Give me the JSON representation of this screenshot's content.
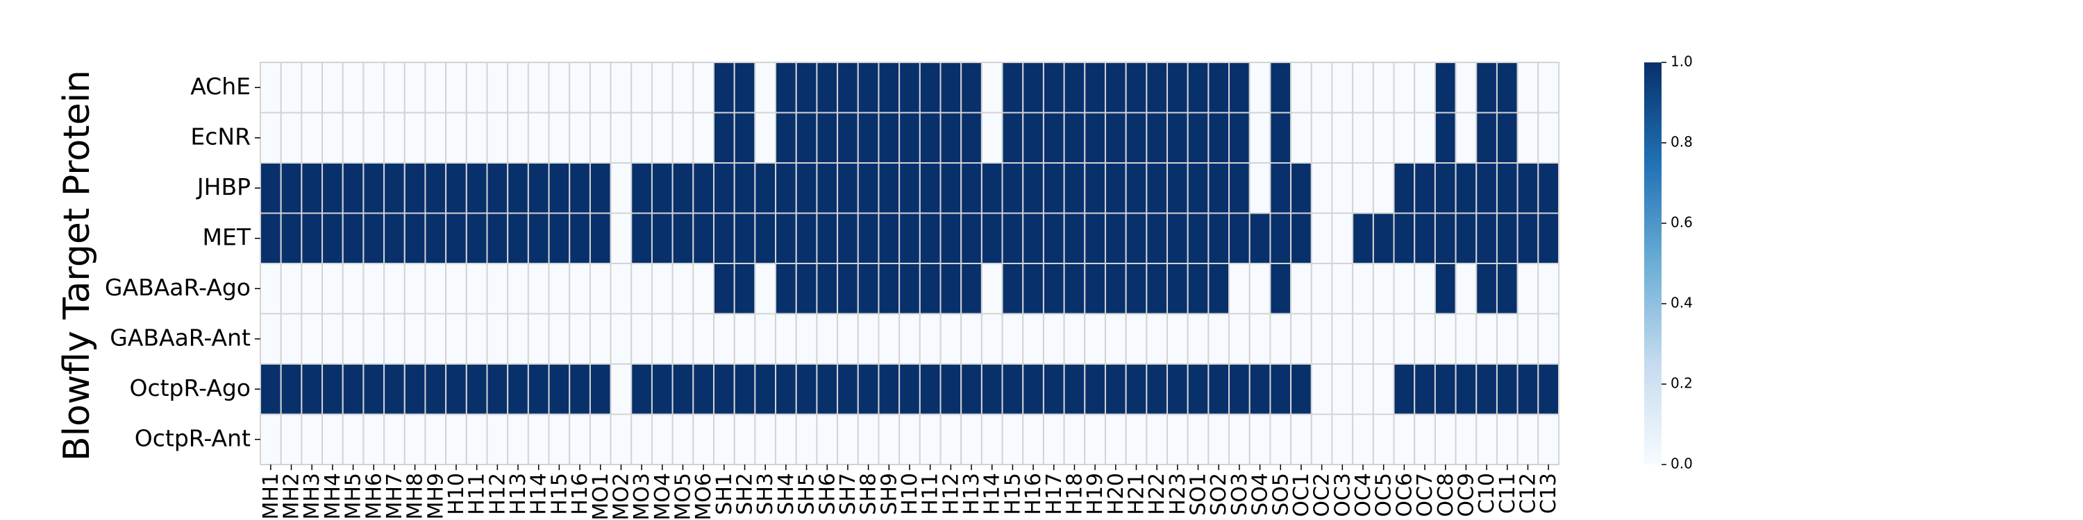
{
  "chart_data": {
    "type": "heatmap",
    "ylabel": "Blowfly Target Protein",
    "xlabel": "",
    "title": "",
    "rows": [
      "AChE",
      "EcNR",
      "JHBP",
      "MET",
      "GABAaR-Ago",
      "GABAaR-Ant",
      "OctpR-Ago",
      "OctpR-Ant"
    ],
    "columns": [
      "MH1",
      "MH2",
      "MH3",
      "MH4",
      "MH5",
      "MH6",
      "MH7",
      "MH8",
      "MH9",
      "H10",
      "H11",
      "H12",
      "H13",
      "H14",
      "H15",
      "H16",
      "MO1",
      "MO2",
      "MO3",
      "MO4",
      "MO5",
      "MO6",
      "SH1",
      "SH2",
      "SH3",
      "SH4",
      "SH5",
      "SH6",
      "SH7",
      "SH8",
      "SH9",
      "H10",
      "H11",
      "H12",
      "H13",
      "H14",
      "H15",
      "H16",
      "H17",
      "H18",
      "H19",
      "H20",
      "H21",
      "H22",
      "H23",
      "SO1",
      "SO2",
      "SO3",
      "SO4",
      "SO5",
      "OC1",
      "OC2",
      "OC3",
      "OC4",
      "OC5",
      "OC6",
      "OC7",
      "OC8",
      "OC9",
      "C10",
      "C11",
      "C12",
      "C13"
    ],
    "values": [
      [
        0,
        0,
        0,
        0,
        0,
        0,
        0,
        0,
        0,
        0,
        0,
        0,
        0,
        0,
        0,
        0,
        0,
        0,
        0,
        0,
        0,
        0,
        1,
        1,
        0,
        1,
        1,
        1,
        1,
        1,
        1,
        1,
        1,
        1,
        1,
        0,
        1,
        1,
        1,
        1,
        1,
        1,
        1,
        1,
        1,
        1,
        1,
        1,
        0,
        1,
        0,
        0,
        0,
        0,
        0,
        0,
        0,
        1,
        0,
        1,
        1,
        0,
        0
      ],
      [
        0,
        0,
        0,
        0,
        0,
        0,
        0,
        0,
        0,
        0,
        0,
        0,
        0,
        0,
        0,
        0,
        0,
        0,
        0,
        0,
        0,
        0,
        1,
        1,
        0,
        1,
        1,
        1,
        1,
        1,
        1,
        1,
        1,
        1,
        1,
        0,
        1,
        1,
        1,
        1,
        1,
        1,
        1,
        1,
        1,
        1,
        1,
        1,
        0,
        1,
        0,
        0,
        0,
        0,
        0,
        0,
        0,
        1,
        0,
        1,
        1,
        0,
        0
      ],
      [
        1,
        1,
        1,
        1,
        1,
        1,
        1,
        1,
        1,
        1,
        1,
        1,
        1,
        1,
        1,
        1,
        1,
        0,
        1,
        1,
        1,
        1,
        1,
        1,
        1,
        1,
        1,
        1,
        1,
        1,
        1,
        1,
        1,
        1,
        1,
        1,
        1,
        1,
        1,
        1,
        1,
        1,
        1,
        1,
        1,
        1,
        1,
        1,
        0,
        1,
        1,
        0,
        0,
        0,
        0,
        1,
        1,
        1,
        1,
        1,
        1,
        1,
        1
      ],
      [
        1,
        1,
        1,
        1,
        1,
        1,
        1,
        1,
        1,
        1,
        1,
        1,
        1,
        1,
        1,
        1,
        1,
        0,
        1,
        1,
        1,
        1,
        1,
        1,
        1,
        1,
        1,
        1,
        1,
        1,
        1,
        1,
        1,
        1,
        1,
        1,
        1,
        1,
        1,
        1,
        1,
        1,
        1,
        1,
        1,
        1,
        1,
        1,
        1,
        1,
        1,
        0,
        0,
        1,
        1,
        1,
        1,
        1,
        1,
        1,
        1,
        1,
        1
      ],
      [
        0,
        0,
        0,
        0,
        0,
        0,
        0,
        0,
        0,
        0,
        0,
        0,
        0,
        0,
        0,
        0,
        0,
        0,
        0,
        0,
        0,
        0,
        1,
        1,
        0,
        1,
        1,
        1,
        1,
        1,
        1,
        1,
        1,
        1,
        1,
        0,
        1,
        1,
        1,
        1,
        1,
        1,
        1,
        1,
        1,
        1,
        1,
        0,
        0,
        1,
        0,
        0,
        0,
        0,
        0,
        0,
        0,
        1,
        0,
        1,
        1,
        0,
        0
      ],
      [
        0,
        0,
        0,
        0,
        0,
        0,
        0,
        0,
        0,
        0,
        0,
        0,
        0,
        0,
        0,
        0,
        0,
        0,
        0,
        0,
        0,
        0,
        0,
        0,
        0,
        0,
        0,
        0,
        0,
        0,
        0,
        0,
        0,
        0,
        0,
        0,
        0,
        0,
        0,
        0,
        0,
        0,
        0,
        0,
        0,
        0,
        0,
        0,
        0,
        0,
        0,
        0,
        0,
        0,
        0,
        0,
        0,
        0,
        0,
        0,
        0,
        0,
        0
      ],
      [
        1,
        1,
        1,
        1,
        1,
        1,
        1,
        1,
        1,
        1,
        1,
        1,
        1,
        1,
        1,
        1,
        1,
        0,
        1,
        1,
        1,
        1,
        1,
        1,
        1,
        1,
        1,
        1,
        1,
        1,
        1,
        1,
        1,
        1,
        1,
        1,
        1,
        1,
        1,
        1,
        1,
        1,
        1,
        1,
        1,
        1,
        1,
        1,
        1,
        1,
        1,
        0,
        0,
        0,
        0,
        1,
        1,
        1,
        1,
        1,
        1,
        1,
        1
      ],
      [
        0,
        0,
        0,
        0,
        0,
        0,
        0,
        0,
        0,
        0,
        0,
        0,
        0,
        0,
        0,
        0,
        0,
        0,
        0,
        0,
        0,
        0,
        0,
        0,
        0,
        0,
        0,
        0,
        0,
        0,
        0,
        0,
        0,
        0,
        0,
        0,
        0,
        0,
        0,
        0,
        0,
        0,
        0,
        0,
        0,
        0,
        0,
        0,
        0,
        0,
        0,
        0,
        0,
        0,
        0,
        0,
        0,
        0,
        0,
        0,
        0,
        0,
        0
      ]
    ],
    "zlim": [
      0,
      1
    ],
    "colormap": {
      "low": "#f7fbff",
      "mid": "#6baed6",
      "high": "#08306b"
    },
    "colorbar_ticks": [
      "0.0",
      "0.2",
      "0.4",
      "0.6",
      "0.8",
      "1.0"
    ],
    "grid_color": "#d3d3d3"
  }
}
